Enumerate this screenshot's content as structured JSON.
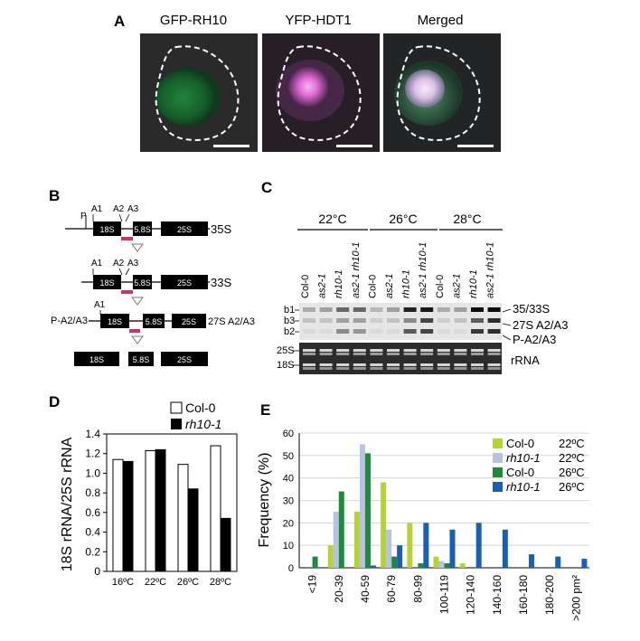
{
  "panel_labels": {
    "a": "A",
    "b": "B",
    "c": "C",
    "d": "D",
    "e": "E"
  },
  "panel_a": {
    "titles": [
      "GFP-RH10",
      "YFP-HDT1",
      "Merged"
    ],
    "colors": {
      "gfp": "#1e8a3c",
      "yfp": "#e06ad8",
      "merged": "#efd0f2",
      "background": "#2a2a2a"
    }
  },
  "panel_b": {
    "row1": {
      "labels": {
        "p": "P",
        "a1": "A1",
        "a2": "A2",
        "a3": "A3",
        "s18": "18S",
        "s58": "5.8S",
        "s25": "25S"
      },
      "species": "35S"
    },
    "row2": {
      "labels": {
        "a1": "A1",
        "a2": "A2",
        "a3": "A3",
        "s18": "18S",
        "s58": "5.8S",
        "s25": "25S"
      },
      "species": "33S"
    },
    "row3": {
      "labels": {
        "left": "P-A2/A3",
        "a1": "A1",
        "s18": "18S",
        "s58": "5.8S",
        "s25": "25S"
      },
      "species": "27S A2/A3"
    },
    "row4": {
      "labels": {
        "s18": "18S",
        "s58": "5.8S",
        "s25": "25S"
      }
    },
    "probe_color": "#d0306e"
  },
  "panel_c": {
    "temperatures": [
      "22°C",
      "26°C",
      "28°C"
    ],
    "lanes": [
      "Col-0",
      "as2-1",
      "rh10-1",
      "as2-1 rh10-1",
      "Col-0",
      "as2-1",
      "rh10-1",
      "as2-1 rh10-1",
      "Col-0",
      "as2-1",
      "rh10-1",
      "as2-1 rh10-1"
    ],
    "left_band_labels": [
      "b1",
      "b3",
      "b2"
    ],
    "left_rrna_labels": [
      "25S",
      "18S"
    ],
    "right_labels": [
      "35/33S",
      "27S A2/A3",
      "P-A2/A3"
    ],
    "rrna_label": "rRNA"
  },
  "panel_d": {
    "ylabel": "18S rRNA/25S rRNA",
    "legend": [
      "Col-0",
      "rh10-1"
    ],
    "chart_data": {
      "type": "bar",
      "categories": [
        "16ºC",
        "22ºC",
        "26ºC",
        "28ºC"
      ],
      "series": [
        {
          "name": "Col-0",
          "values": [
            1.14,
            1.23,
            1.09,
            1.28
          ],
          "color": "#ffffff"
        },
        {
          "name": "rh10-1",
          "values": [
            1.12,
            1.24,
            0.84,
            0.54
          ],
          "color": "#000000"
        }
      ],
      "ylim": [
        0,
        1.4
      ],
      "yticks": [
        "0",
        "0.2",
        "0.4",
        "0.6",
        "0.8",
        "1.0",
        "1.2",
        "1.4"
      ]
    }
  },
  "panel_e": {
    "ylabel": "Frequency (%)",
    "chart_data": {
      "type": "bar",
      "categories": [
        "<19",
        "20-39",
        "40-59",
        "60-79",
        "80-99",
        "100-119",
        "120-140",
        "140-160",
        "160-180",
        "180-200",
        ">200 pm²"
      ],
      "series": [
        {
          "name": "Col-0",
          "temp": "22ºC",
          "color": "#b5d336",
          "values": [
            0,
            10,
            25,
            38,
            20,
            5,
            2,
            0,
            0,
            0,
            0
          ]
        },
        {
          "name": "rh10-1",
          "temp": "22ºC",
          "color": "#b8c2e2",
          "values": [
            0,
            25,
            55,
            17,
            0,
            3,
            0,
            0,
            0,
            0,
            0
          ]
        },
        {
          "name": "Col-0",
          "temp": "26ºC",
          "color": "#1e8a3c",
          "values": [
            5,
            34,
            51,
            5,
            2,
            2,
            0,
            0,
            0,
            0,
            0
          ]
        },
        {
          "name": "rh10-1",
          "temp": "26ºC",
          "color": "#1a5fb4",
          "values": [
            0,
            0,
            1,
            10,
            20,
            17,
            20,
            17,
            6,
            5,
            4
          ]
        }
      ],
      "ylim": [
        0,
        60
      ],
      "yticks": [
        "0",
        "10",
        "20",
        "30",
        "40",
        "50",
        "60"
      ],
      "grid": true
    }
  }
}
